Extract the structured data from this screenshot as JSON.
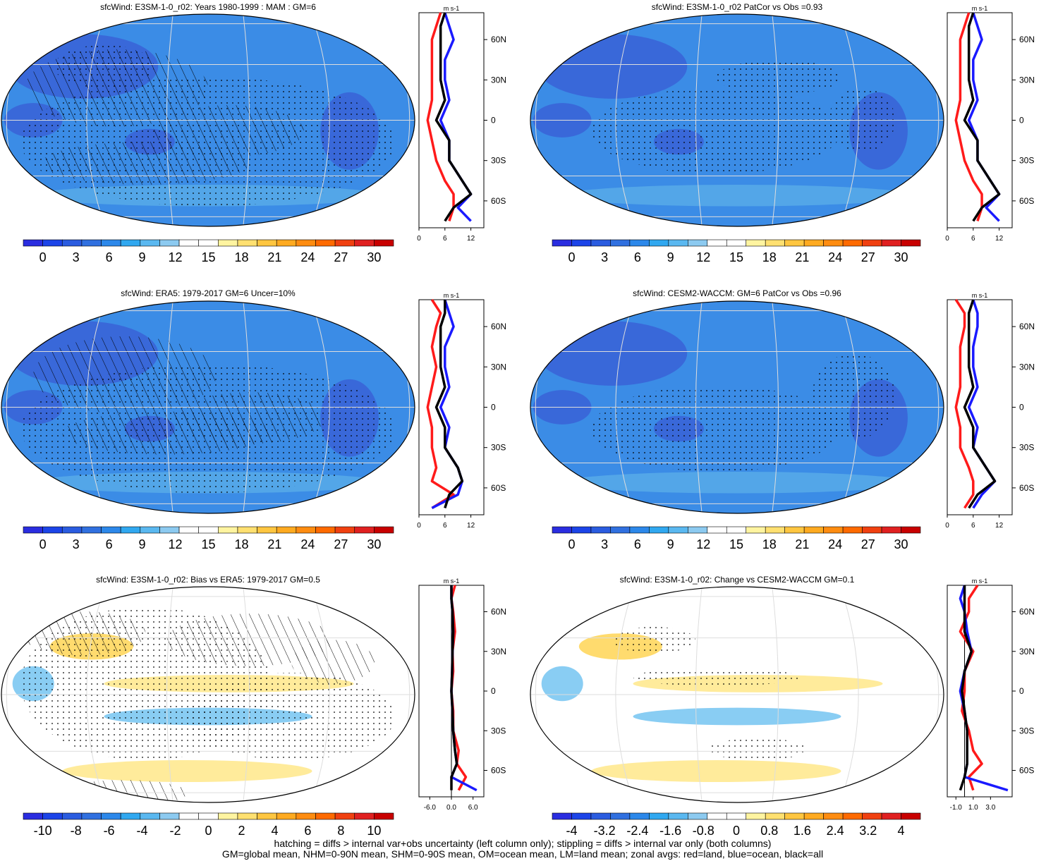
{
  "panels": [
    {
      "title": "sfcWind: E3SM-1-0_r02: Years 1980-1999 : MAM : GM=6",
      "kind": "mean",
      "colorbar": {
        "labels": [
          "0",
          "3",
          "6",
          "9",
          "12",
          "15",
          "18",
          "21",
          "24",
          "27",
          "30"
        ]
      },
      "profile": {
        "unit": "m s-1",
        "xticks": [
          "0",
          "6",
          "12"
        ],
        "xlim": [
          0,
          15
        ],
        "yticks": [
          "60N",
          "30N",
          "0",
          "30S",
          "60S"
        ],
        "ylim": [
          -80,
          80
        ]
      }
    },
    {
      "title": "sfcWind: E3SM-1-0_r02 PatCor vs Obs =0.93",
      "kind": "mean",
      "colorbar": {
        "labels": [
          "0",
          "3",
          "6",
          "9",
          "12",
          "15",
          "18",
          "21",
          "24",
          "27",
          "30"
        ]
      },
      "profile": {
        "unit": "m s-1",
        "xticks": [
          "0",
          "6",
          "12"
        ],
        "xlim": [
          0,
          15
        ],
        "yticks": [
          "60N",
          "30N",
          "0",
          "30S",
          "60S"
        ],
        "ylim": [
          -80,
          80
        ]
      }
    },
    {
      "title": "sfcWind: ERA5: 1979-2017 GM=6 Uncer=10%",
      "kind": "mean",
      "colorbar": {
        "labels": [
          "0",
          "3",
          "6",
          "9",
          "12",
          "15",
          "18",
          "21",
          "24",
          "27",
          "30"
        ]
      },
      "profile": {
        "unit": "m s-1",
        "xticks": [
          "0",
          "6",
          "12"
        ],
        "xlim": [
          0,
          15
        ],
        "yticks": [
          "60N",
          "30N",
          "0",
          "30S",
          "60S"
        ],
        "ylim": [
          -80,
          80
        ]
      }
    },
    {
      "title": "sfcWind: CESM2-WACCM: GM=6 PatCor vs Obs =0.96",
      "kind": "mean",
      "colorbar": {
        "labels": [
          "0",
          "3",
          "6",
          "9",
          "12",
          "15",
          "18",
          "21",
          "24",
          "27",
          "30"
        ]
      },
      "profile": {
        "unit": "m s-1",
        "xticks": [
          "0",
          "6",
          "12"
        ],
        "xlim": [
          0,
          15
        ],
        "yticks": [
          "60N",
          "30N",
          "0",
          "30S",
          "60S"
        ],
        "ylim": [
          -80,
          80
        ]
      }
    },
    {
      "title": "sfcWind: E3SM-1-0_r02: Bias vs ERA5: 1979-2017 GM=0.5",
      "kind": "diff",
      "colorbar": {
        "labels": [
          "-10",
          "-8",
          "-6",
          "-4",
          "-2",
          "0",
          "2",
          "4",
          "6",
          "8",
          "10"
        ]
      },
      "profile": {
        "unit": "m s-1",
        "xticks": [
          "-6.0",
          "0.0",
          "6.0"
        ],
        "xlim": [
          -9,
          9
        ],
        "yticks": [
          "60N",
          "30N",
          "0",
          "30S",
          "60S"
        ],
        "ylim": [
          -80,
          80
        ]
      }
    },
    {
      "title": "sfcWind: E3SM-1-0_r02: Change vs CESM2-WACCM GM=0.1",
      "kind": "diff",
      "colorbar": {
        "labels": [
          "-4",
          "-3.2",
          "-2.4",
          "-1.6",
          "-0.8",
          "0",
          "0.8",
          "1.6",
          "2.4",
          "3.2",
          "4"
        ]
      },
      "profile": {
        "unit": "m s-1",
        "xticks": [
          "-1.0",
          "1.0",
          "3.0"
        ],
        "xlim": [
          -2,
          5.5
        ],
        "yticks": [
          "60N",
          "30N",
          "0",
          "30S",
          "60S"
        ],
        "ylim": [
          -80,
          80
        ]
      }
    }
  ],
  "footer": [
    "hatching = diffs > internal var+obs uncertainty (left column only); stippling = diffs > internal var only (both columns)",
    "GM=global mean, NHM=0-90N mean, SHM=0-90S mean, OM=ocean mean, LM=land mean; zonal avgs: red=land, blue=ocean, black=all"
  ],
  "colors": {
    "mean_scale": [
      "#2a2de0",
      "#1c44e8",
      "#2a5ce0",
      "#3070e0",
      "#2c88ea",
      "#30a8f0",
      "#5ab8f0",
      "#8ccaf0",
      "#ffffff",
      "#ffffff",
      "#fff4a0",
      "#ffe070",
      "#ffc640",
      "#ffaa20",
      "#ff8c10",
      "#ff6a00",
      "#f04010",
      "#e02020",
      "#c80000"
    ],
    "diff_scale": [
      "#2a2de0",
      "#1c44e8",
      "#2a5ce0",
      "#3070e0",
      "#2c88ea",
      "#30a8f0",
      "#5ab8f0",
      "#8ccaf0",
      "#ffffff",
      "#ffffff",
      "#fff4a0",
      "#ffe070",
      "#ffc640",
      "#ffaa20",
      "#ff8c10",
      "#ff6a00",
      "#f04010",
      "#e02020",
      "#c80000"
    ],
    "land_line": "#ff1a1a",
    "ocean_line": "#1a1aff",
    "all_line": "#000000"
  },
  "chart_data": [
    {
      "type": "heatmap",
      "title": "sfcWind: E3SM-1-0_r02: Years 1980-1999 : MAM : GM=6",
      "zonal_mean": {
        "lat": [
          80,
          70,
          60,
          45,
          30,
          15,
          0,
          -15,
          -30,
          -45,
          -55,
          -65,
          -75
        ],
        "land": [
          5,
          4,
          3,
          3,
          3,
          3,
          2,
          3,
          4,
          6,
          8,
          8,
          7
        ],
        "ocean": [
          6,
          7,
          8,
          6,
          6,
          7,
          5,
          7,
          7,
          10,
          12,
          9,
          12
        ],
        "all": [
          6,
          5,
          5,
          5,
          5,
          6,
          4,
          7,
          7,
          10,
          12,
          8,
          6
        ]
      }
    },
    {
      "type": "heatmap",
      "title": "sfcWind: E3SM-1-0_r02 PatCor vs Obs =0.93",
      "zonal_mean": {
        "lat": [
          80,
          70,
          60,
          45,
          30,
          15,
          0,
          -15,
          -30,
          -45,
          -55,
          -65,
          -75
        ],
        "land": [
          5,
          4,
          3,
          3,
          3,
          3,
          2,
          3,
          4,
          6,
          8,
          8,
          7
        ],
        "ocean": [
          6,
          7,
          8,
          6,
          6,
          7,
          5,
          7,
          7,
          10,
          12,
          9,
          12
        ],
        "all": [
          6,
          5,
          5,
          5,
          5,
          6,
          4,
          7,
          7,
          10,
          12,
          8,
          6
        ]
      }
    },
    {
      "type": "heatmap",
      "title": "sfcWind: ERA5: 1979-2017 GM=6 Uncer=10%",
      "zonal_mean": {
        "lat": [
          80,
          70,
          60,
          45,
          30,
          15,
          0,
          -15,
          -30,
          -45,
          -55,
          -65,
          -75
        ],
        "land": [
          3,
          5,
          4,
          3,
          4,
          3,
          2,
          3,
          3,
          4,
          3,
          8,
          3
        ],
        "ocean": [
          6,
          7,
          8,
          6,
          6,
          7,
          5,
          7,
          6,
          9,
          10,
          9,
          3
        ],
        "all": [
          6,
          6,
          5,
          5,
          5,
          6,
          4,
          6,
          6,
          9,
          10,
          7,
          6
        ]
      }
    },
    {
      "type": "heatmap",
      "title": "sfcWind: CESM2-WACCM: GM=6 PatCor vs Obs =0.96",
      "zonal_mean": {
        "lat": [
          80,
          70,
          60,
          45,
          30,
          15,
          0,
          -15,
          -30,
          -45,
          -55,
          -65,
          -75
        ],
        "land": [
          2,
          4,
          4,
          3,
          3,
          3,
          2,
          3,
          3,
          5,
          6,
          6,
          4
        ],
        "ocean": [
          6,
          7,
          7,
          6,
          6,
          7,
          5,
          7,
          6,
          9,
          11,
          8,
          6
        ],
        "all": [
          6,
          5,
          5,
          5,
          5,
          6,
          4,
          6,
          6,
          9,
          11,
          7,
          5
        ]
      }
    },
    {
      "type": "heatmap",
      "title": "sfcWind: E3SM-1-0_r02: Bias vs ERA5: 1979-2017 GM=0.5",
      "zonal_mean": {
        "lat": [
          80,
          70,
          60,
          45,
          30,
          15,
          0,
          -15,
          -30,
          -45,
          -55,
          -65,
          -75
        ],
        "land": [
          1,
          0,
          0.5,
          1,
          0.3,
          0.5,
          0,
          0.5,
          0.5,
          2,
          1.5,
          4,
          2
        ],
        "ocean": [
          0,
          0,
          0.3,
          0.5,
          0.3,
          0.2,
          0,
          0.3,
          0.5,
          1,
          1.5,
          0,
          7
        ],
        "all": [
          0,
          0,
          0.3,
          0.5,
          0.3,
          0.2,
          0,
          0.3,
          0.5,
          1,
          1.5,
          0,
          0
        ]
      }
    },
    {
      "type": "heatmap",
      "title": "sfcWind: E3SM-1-0_r02: Change vs CESM2-WACCM GM=0.1",
      "zonal_mean": {
        "lat": [
          80,
          70,
          60,
          45,
          30,
          15,
          0,
          -15,
          -30,
          -45,
          -55,
          -65,
          -75
        ],
        "land": [
          1.5,
          0.5,
          0.5,
          -0.5,
          1,
          0,
          0,
          -0.3,
          0.5,
          1,
          2,
          0.5,
          1
        ],
        "ocean": [
          0,
          -0.5,
          0,
          0.3,
          0.8,
          0,
          -0.5,
          0,
          0.3,
          0.3,
          0.3,
          0,
          5
        ],
        "all": [
          0,
          0,
          0,
          0,
          0.8,
          0,
          -0.3,
          0,
          0.3,
          0.3,
          0.3,
          0,
          -0.5
        ]
      }
    }
  ]
}
